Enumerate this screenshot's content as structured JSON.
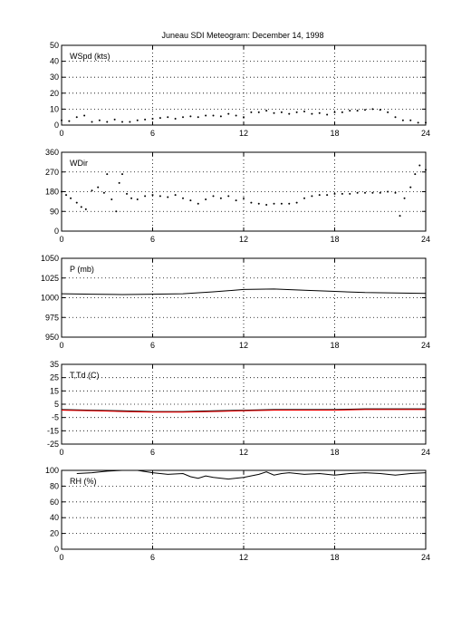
{
  "figure": {
    "title": "Juneau SDI Meteogram:   December 14, 1998"
  },
  "chart_data": [
    {
      "type": "scatter",
      "panel_label": "WSpd (kts)",
      "xlim": [
        0,
        24
      ],
      "xticks": [
        "0",
        "6",
        "12",
        "18",
        "24"
      ],
      "ylim": [
        0,
        50
      ],
      "yticks": [
        "0",
        "10",
        "20",
        "30",
        "40",
        "50"
      ],
      "grid": true,
      "series": [
        {
          "color": "#000000",
          "style": "dots",
          "x": [
            0,
            0.5,
            1,
            1.5,
            2,
            2.5,
            3,
            3.5,
            4,
            4.5,
            5,
            5.5,
            6,
            6.5,
            7,
            7.5,
            8,
            8.5,
            9,
            9.5,
            10,
            10.5,
            11,
            11.5,
            12,
            12.5,
            13,
            13.5,
            14,
            14.5,
            15,
            15.5,
            16,
            16.5,
            17,
            17.5,
            18,
            18.5,
            19,
            19.5,
            20,
            20.5,
            21,
            21.5,
            22,
            22.5,
            23,
            23.5,
            24
          ],
          "y": [
            3,
            2.5,
            5,
            6,
            2,
            3,
            2,
            3.5,
            2,
            2,
            3,
            3.5,
            4,
            4.5,
            5,
            4,
            5,
            5.5,
            5,
            6,
            6,
            5.5,
            7,
            6,
            5,
            8,
            8,
            9,
            7.5,
            8,
            7,
            8,
            8.5,
            7,
            7.5,
            6.5,
            8,
            8,
            9,
            9,
            9.5,
            10,
            9.5,
            8,
            5,
            3,
            3,
            1.5,
            1.5
          ]
        }
      ]
    },
    {
      "type": "scatter",
      "panel_label": "WDir",
      "xlim": [
        0,
        24
      ],
      "xticks": [
        "0",
        "6",
        "12",
        "18",
        "24"
      ],
      "ylim": [
        0,
        360
      ],
      "yticks": [
        "0",
        "90",
        "180",
        "270",
        "360"
      ],
      "grid": true,
      "series": [
        {
          "color": "#000000",
          "style": "dots",
          "x": [
            0,
            0.3,
            0.6,
            1,
            1.3,
            1.6,
            2,
            2.4,
            2.8,
            3,
            3.3,
            3.6,
            3.8,
            4,
            4.3,
            4.6,
            5,
            5.5,
            6,
            6.5,
            7,
            7.5,
            8,
            8.5,
            9,
            9.5,
            10,
            10.5,
            11,
            11.5,
            12,
            12.5,
            13,
            13.5,
            14,
            14.5,
            15,
            15.5,
            16,
            16.5,
            17,
            17.5,
            18,
            18.5,
            19,
            19.5,
            20,
            20.5,
            21,
            21.5,
            22,
            22.3,
            22.6,
            23,
            23.3,
            23.6,
            24
          ],
          "y": [
            180,
            165,
            150,
            130,
            110,
            100,
            185,
            200,
            175,
            260,
            145,
            90,
            220,
            260,
            170,
            150,
            145,
            160,
            165,
            160,
            155,
            165,
            150,
            140,
            125,
            145,
            160,
            150,
            160,
            140,
            150,
            130,
            125,
            120,
            125,
            125,
            125,
            130,
            150,
            160,
            165,
            165,
            170,
            170,
            170,
            175,
            175,
            175,
            175,
            180,
            175,
            70,
            150,
            200,
            260,
            300,
            280
          ]
        }
      ]
    },
    {
      "type": "line",
      "panel_label": "P (mb)",
      "xlim": [
        0,
        24
      ],
      "xticks": [
        "0",
        "6",
        "12",
        "18",
        "24"
      ],
      "ylim": [
        950,
        1050
      ],
      "yticks": [
        "950",
        "975",
        "1000",
        "1025",
        "1050"
      ],
      "grid": true,
      "series": [
        {
          "color": "#000000",
          "x": [
            0,
            2,
            4,
            6,
            8,
            10,
            12,
            14,
            16,
            18,
            20,
            22,
            24
          ],
          "y": [
            1005,
            1004.5,
            1004,
            1004.5,
            1005,
            1007.5,
            1010.5,
            1011,
            1009.5,
            1008,
            1006.5,
            1006,
            1005.5
          ]
        }
      ]
    },
    {
      "type": "line",
      "panel_label": "T,Td (C)",
      "xlim": [
        0,
        24
      ],
      "xticks": [
        "0",
        "6",
        "12",
        "18",
        "24"
      ],
      "ylim": [
        -25,
        35
      ],
      "yticks": [
        "-25",
        "-15",
        "-5",
        "5",
        "15",
        "25",
        "35"
      ],
      "grid": true,
      "series": [
        {
          "color": "#000000",
          "x": [
            0,
            2,
            4,
            6,
            8,
            10,
            12,
            14,
            16,
            18,
            20,
            22,
            24
          ],
          "y": [
            1,
            0.5,
            0,
            -0.5,
            -0.5,
            0,
            0.5,
            1,
            1,
            1,
            1.5,
            1.5,
            1.5
          ]
        },
        {
          "color": "#ff0000",
          "x": [
            0,
            2,
            4,
            6,
            8,
            10,
            12,
            14,
            16,
            18,
            20,
            22,
            24
          ],
          "y": [
            0.5,
            0,
            -0.5,
            -1,
            -1,
            -0.5,
            0,
            0.5,
            0.5,
            0.5,
            1,
            1,
            1
          ]
        }
      ]
    },
    {
      "type": "line",
      "panel_label": "RH (%)",
      "xlim": [
        0,
        24
      ],
      "xticks": [
        "0",
        "6",
        "12",
        "18",
        "24"
      ],
      "ylim": [
        0,
        100
      ],
      "yticks": [
        "0",
        "20",
        "40",
        "60",
        "80",
        "100"
      ],
      "grid": true,
      "series": [
        {
          "color": "#000000",
          "x": [
            1,
            2,
            3,
            4,
            5,
            6,
            7,
            8,
            8.5,
            9,
            9.5,
            10,
            11,
            12,
            13,
            13.5,
            14,
            14.5,
            15,
            16,
            17,
            18,
            19,
            20,
            21,
            22,
            23,
            24
          ],
          "y": [
            96,
            97,
            99,
            100,
            100,
            97,
            95,
            96,
            92,
            90,
            93,
            91,
            89,
            91,
            95,
            98,
            94,
            96,
            97,
            95,
            96,
            94,
            96,
            97,
            96,
            94,
            96,
            97
          ]
        }
      ]
    }
  ]
}
